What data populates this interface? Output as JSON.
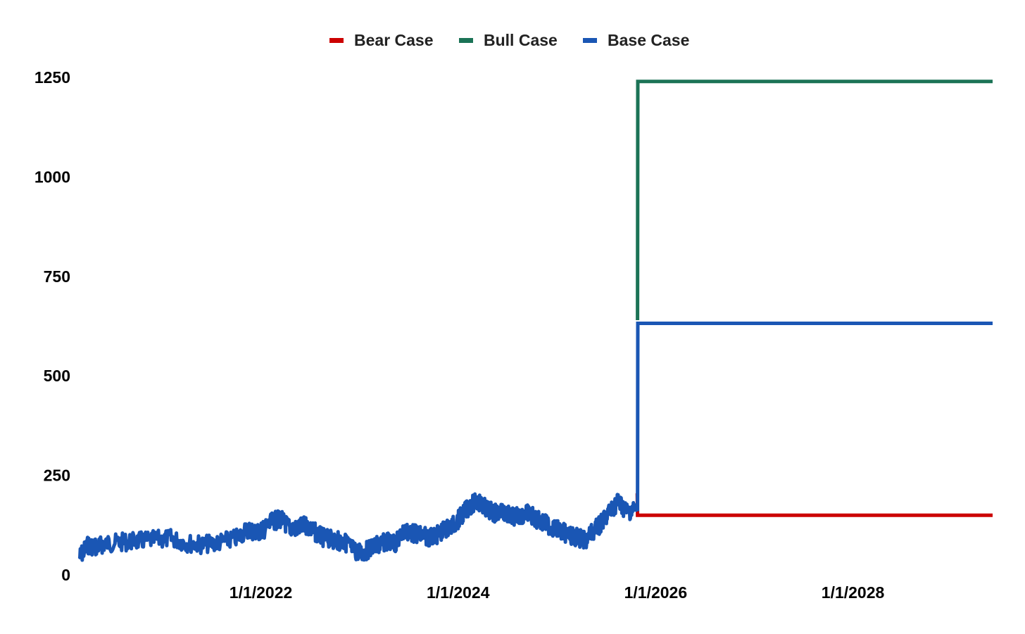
{
  "chart_data": {
    "type": "line",
    "title": "",
    "xlabel": "",
    "ylabel": "",
    "legend_position": "top-center",
    "grid": false,
    "xlim": [
      "2020-03-01",
      "2029-06-01"
    ],
    "ylim": [
      0,
      1250
    ],
    "x_ticks": [
      "1/1/2022",
      "1/1/2024",
      "1/1/2026",
      "1/1/2028"
    ],
    "y_ticks": [
      "0",
      "250",
      "500",
      "750",
      "1000",
      "1250"
    ],
    "series": [
      {
        "name": "Bear Case",
        "color": "#cc0000",
        "points": [
          [
            "2025-10-25",
            205
          ],
          [
            "2025-10-26",
            150
          ],
          [
            "2029-06-01",
            150
          ]
        ]
      },
      {
        "name": "Bull Case",
        "color": "#1b7356",
        "points": [
          [
            "2025-10-26",
            640
          ],
          [
            "2025-10-27",
            1240
          ],
          [
            "2029-06-01",
            1240
          ]
        ]
      },
      {
        "name": "Base Case",
        "color": "#1a56b4",
        "historical": [
          [
            "2020-03-01",
            45
          ],
          [
            "2020-04-01",
            75
          ],
          [
            "2020-05-01",
            70
          ],
          [
            "2020-06-01",
            78
          ],
          [
            "2020-08-01",
            82
          ],
          [
            "2020-10-01",
            85
          ],
          [
            "2020-12-01",
            88
          ],
          [
            "2021-02-01",
            92
          ],
          [
            "2021-04-01",
            80
          ],
          [
            "2021-06-01",
            76
          ],
          [
            "2021-08-01",
            82
          ],
          [
            "2021-10-01",
            92
          ],
          [
            "2021-11-15",
            115
          ],
          [
            "2021-12-15",
            105
          ],
          [
            "2022-01-15",
            115
          ],
          [
            "2022-02-15",
            135
          ],
          [
            "2022-03-15",
            140
          ],
          [
            "2022-04-15",
            120
          ],
          [
            "2022-05-15",
            115
          ],
          [
            "2022-06-15",
            125
          ],
          [
            "2022-07-15",
            110
          ],
          [
            "2022-08-15",
            95
          ],
          [
            "2022-09-15",
            90
          ],
          [
            "2022-10-15",
            85
          ],
          [
            "2022-11-15",
            80
          ],
          [
            "2022-12-15",
            60
          ],
          [
            "2023-01-15",
            55
          ],
          [
            "2023-02-15",
            70
          ],
          [
            "2023-03-15",
            75
          ],
          [
            "2023-04-15",
            85
          ],
          [
            "2023-05-15",
            80
          ],
          [
            "2023-06-15",
            110
          ],
          [
            "2023-07-15",
            105
          ],
          [
            "2023-08-15",
            100
          ],
          [
            "2023-09-15",
            95
          ],
          [
            "2023-10-15",
            100
          ],
          [
            "2023-11-15",
            115
          ],
          [
            "2023-12-15",
            125
          ],
          [
            "2024-01-15",
            150
          ],
          [
            "2024-02-15",
            175
          ],
          [
            "2024-03-15",
            185
          ],
          [
            "2024-04-15",
            165
          ],
          [
            "2024-05-15",
            155
          ],
          [
            "2024-06-15",
            160
          ],
          [
            "2024-07-15",
            145
          ],
          [
            "2024-08-15",
            150
          ],
          [
            "2024-09-15",
            155
          ],
          [
            "2024-10-15",
            140
          ],
          [
            "2024-11-15",
            130
          ],
          [
            "2024-12-15",
            120
          ],
          [
            "2025-01-15",
            110
          ],
          [
            "2025-02-15",
            100
          ],
          [
            "2025-03-15",
            95
          ],
          [
            "2025-04-15",
            85
          ],
          [
            "2025-05-15",
            110
          ],
          [
            "2025-06-15",
            130
          ],
          [
            "2025-07-15",
            160
          ],
          [
            "2025-08-15",
            185
          ],
          [
            "2025-09-15",
            160
          ],
          [
            "2025-10-20",
            165
          ]
        ],
        "projection": [
          [
            "2025-10-26",
            160
          ],
          [
            "2025-10-27",
            632
          ],
          [
            "2029-06-01",
            632
          ]
        ]
      }
    ]
  }
}
